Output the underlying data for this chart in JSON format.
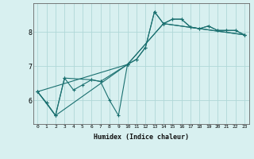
{
  "xlabel": "Humidex (Indice chaleur)",
  "bg_color": "#d8f0f0",
  "grid_color": "#b0d8d8",
  "line_color": "#1a7070",
  "xlim": [
    -0.5,
    23.5
  ],
  "ylim": [
    5.3,
    8.85
  ],
  "yticks": [
    6,
    7,
    8
  ],
  "xticks": [
    0,
    1,
    2,
    3,
    4,
    5,
    6,
    7,
    8,
    9,
    10,
    11,
    12,
    13,
    14,
    15,
    16,
    17,
    18,
    19,
    20,
    21,
    22,
    23
  ],
  "series": [
    {
      "x": [
        0,
        1,
        2,
        3,
        4,
        5,
        6,
        7,
        8,
        9,
        10,
        11,
        12,
        13,
        14,
        15,
        16,
        17,
        18,
        19,
        20,
        21,
        22,
        23
      ],
      "y": [
        6.25,
        5.92,
        5.55,
        6.65,
        6.3,
        6.45,
        6.6,
        6.55,
        6.0,
        5.55,
        7.05,
        7.2,
        7.55,
        8.6,
        8.25,
        8.38,
        8.38,
        8.15,
        8.1,
        8.18,
        8.05,
        8.05,
        8.05,
        7.92
      ]
    },
    {
      "x": [
        0,
        1,
        2,
        3,
        6,
        7,
        10,
        11,
        12,
        13,
        14,
        15,
        16,
        17,
        18,
        19,
        20,
        21,
        22,
        23
      ],
      "y": [
        6.25,
        5.92,
        5.55,
        6.65,
        6.6,
        6.55,
        7.05,
        7.2,
        7.55,
        8.6,
        8.25,
        8.38,
        8.38,
        8.15,
        8.1,
        8.18,
        8.05,
        8.05,
        8.05,
        7.92
      ]
    },
    {
      "x": [
        0,
        10,
        14,
        23
      ],
      "y": [
        6.25,
        7.05,
        8.25,
        7.92
      ]
    },
    {
      "x": [
        0,
        2,
        10,
        14,
        23
      ],
      "y": [
        6.25,
        5.55,
        7.05,
        8.25,
        7.92
      ]
    }
  ]
}
